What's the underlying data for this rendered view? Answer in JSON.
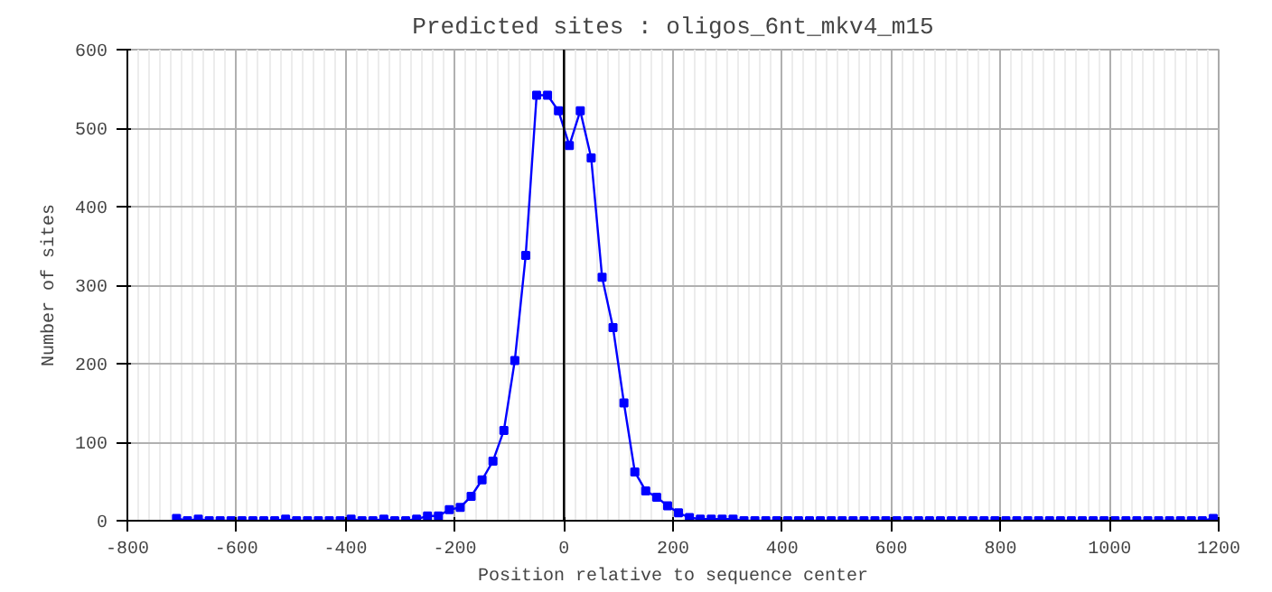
{
  "chart_data": {
    "type": "line",
    "title": "Predicted sites : oligos_6nt_mkv4_m15",
    "xlabel": "Position relative to sequence center",
    "ylabel": "Number of sites",
    "x": [
      -710,
      -690,
      -670,
      -650,
      -630,
      -610,
      -590,
      -570,
      -550,
      -530,
      -510,
      -490,
      -470,
      -450,
      -430,
      -410,
      -390,
      -370,
      -350,
      -330,
      -310,
      -290,
      -270,
      -250,
      -230,
      -210,
      -190,
      -170,
      -150,
      -130,
      -110,
      -90,
      -70,
      -50,
      -30,
      -10,
      10,
      30,
      50,
      70,
      90,
      110,
      130,
      150,
      170,
      190,
      210,
      230,
      250,
      270,
      290,
      310,
      330,
      350,
      370,
      390,
      410,
      430,
      450,
      470,
      490,
      510,
      530,
      550,
      570,
      590,
      610,
      630,
      650,
      670,
      690,
      710,
      730,
      750,
      770,
      790,
      810,
      830,
      850,
      870,
      890,
      910,
      930,
      950,
      970,
      990,
      1010,
      1030,
      1050,
      1070,
      1090,
      1110,
      1130,
      1150,
      1170,
      1190
    ],
    "series": [
      {
        "color": "#0000ff",
        "values": [
          3,
          0,
          2,
          0,
          0,
          0,
          0,
          0,
          0,
          0,
          2,
          0,
          0,
          0,
          0,
          0,
          2,
          0,
          0,
          2,
          0,
          0,
          2,
          6,
          6,
          14,
          17,
          31,
          52,
          76,
          115,
          204,
          338,
          542,
          542,
          522,
          478,
          522,
          462,
          310,
          246,
          150,
          62,
          38,
          30,
          19,
          10,
          4,
          2,
          2,
          2,
          2,
          0,
          0,
          0,
          0,
          0,
          0,
          0,
          0,
          0,
          0,
          0,
          0,
          0,
          0,
          0,
          0,
          0,
          0,
          0,
          0,
          0,
          0,
          0,
          0,
          0,
          0,
          0,
          0,
          0,
          0,
          0,
          0,
          0,
          0,
          0,
          0,
          0,
          0,
          0,
          0,
          0,
          0,
          0,
          3
        ]
      }
    ],
    "xlim": [
      -800,
      1200
    ],
    "xticks": [
      -800,
      -600,
      -400,
      -200,
      0,
      200,
      400,
      600,
      800,
      1000,
      1200
    ],
    "ylim": [
      0,
      600
    ],
    "yticks": [
      0,
      100,
      200,
      300,
      400,
      500,
      600
    ],
    "ref_lines": [
      {
        "axis": "x",
        "value": 0,
        "color": "#000000"
      }
    ],
    "grid": true,
    "marker": "square",
    "line_style": "solid"
  }
}
